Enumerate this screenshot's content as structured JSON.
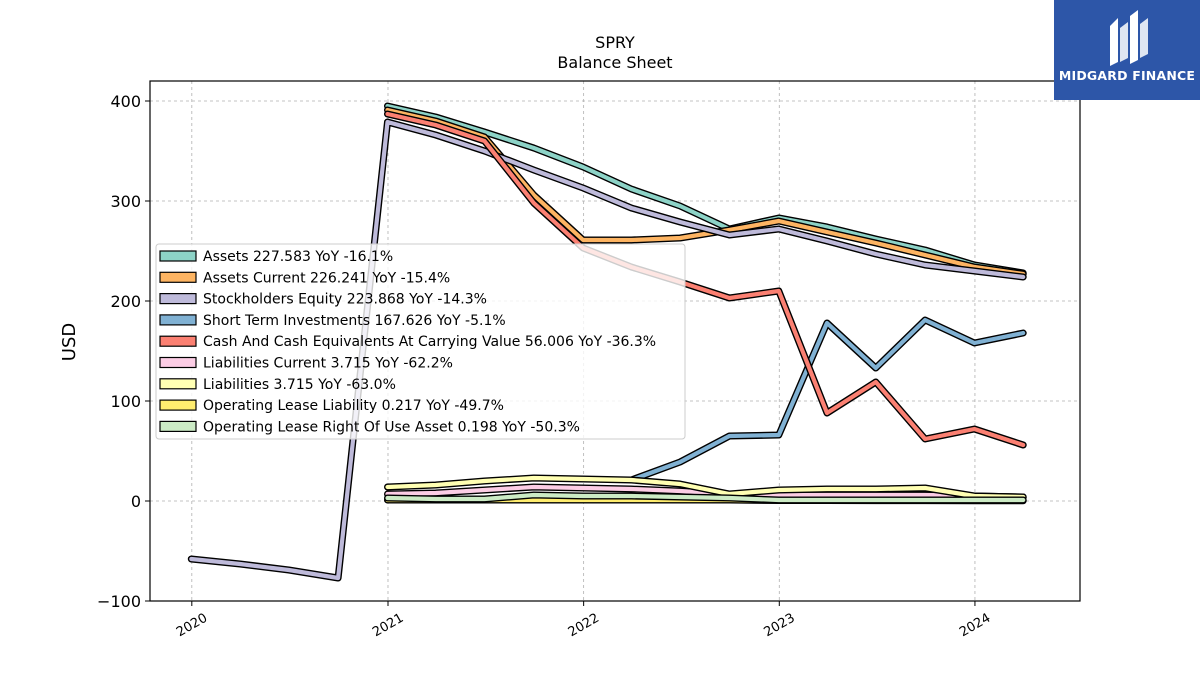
{
  "chart_data": {
    "type": "line",
    "title": "SPRY",
    "subtitle": "Balance  Sheet",
    "ylabel": "USD",
    "xlabel": "",
    "ylim": [
      -100,
      420
    ],
    "yticks": [
      -100,
      0,
      100,
      200,
      300,
      400
    ],
    "ytick_labels": [
      "−100",
      "0",
      "100",
      "200",
      "300",
      "400"
    ],
    "xlim": [
      "2019-10-15",
      "2024-07-15"
    ],
    "xticks": [
      "2020-01-01",
      "2021-01-01",
      "2022-01-01",
      "2023-01-01",
      "2024-01-01"
    ],
    "xtick_labels": [
      "2020",
      "2021",
      "2022",
      "2023",
      "2024"
    ],
    "grid": true,
    "legend_position": "center-left",
    "series": [
      {
        "name": "Assets",
        "legend": "Assets  227.583 YoY -16.1%",
        "color": "#8dd3c7",
        "x": [
          "2020-12-31",
          "2021-03-31",
          "2021-06-30",
          "2021-09-30",
          "2021-12-31",
          "2022-03-31",
          "2022-06-30",
          "2022-09-30",
          "2022-12-31",
          "2023-03-31",
          "2023-06-30",
          "2023-09-30",
          "2023-12-31",
          "2024-03-31"
        ],
        "y": [
          395,
          384,
          369,
          353,
          334,
          312,
          295,
          272,
          283,
          274,
          262,
          251,
          236,
          228
        ]
      },
      {
        "name": "Assets Current",
        "legend": "Assets Current  226.241 YoY -15.4%",
        "color": "#fdb462",
        "x": [
          "2020-12-31",
          "2021-03-31",
          "2021-06-30",
          "2021-09-30",
          "2021-12-31",
          "2022-03-31",
          "2022-06-30",
          "2022-09-30",
          "2022-12-31",
          "2023-03-31",
          "2023-06-30",
          "2023-09-30",
          "2023-12-31",
          "2024-03-31"
        ],
        "y": [
          391,
          380,
          364,
          306,
          261,
          261,
          263,
          271,
          280,
          269,
          258,
          246,
          234,
          227
        ]
      },
      {
        "name": "Stockholders Equity",
        "legend": "Stockholders Equity  223.868 YoY -14.3%",
        "color": "#bebada",
        "x": [
          "2019-12-31",
          "2020-03-31",
          "2020-06-30",
          "2020-09-30",
          "2020-12-31",
          "2021-03-31",
          "2021-06-30",
          "2021-09-30",
          "2021-12-31",
          "2022-03-31",
          "2022-06-30",
          "2022-09-30",
          "2022-12-31",
          "2023-03-31",
          "2023-06-30",
          "2023-09-30",
          "2023-12-31",
          "2024-03-31"
        ],
        "y": [
          -58,
          -63,
          -69,
          -77,
          379,
          366,
          350,
          331,
          313,
          293,
          279,
          266,
          272,
          260,
          247,
          236,
          230,
          224
        ]
      },
      {
        "name": "Short Term Investments",
        "legend": "Short Term Investments  167.626 YoY -5.1%",
        "color": "#80b1d3",
        "x": [
          "2022-03-31",
          "2022-06-30",
          "2022-09-30",
          "2022-12-31",
          "2023-03-31",
          "2023-06-30",
          "2023-09-30",
          "2023-12-31",
          "2024-03-31"
        ],
        "y": [
          21,
          39,
          65,
          66,
          178,
          133,
          181,
          158,
          168
        ]
      },
      {
        "name": "Cash And Cash Equivalents At Carrying Value",
        "legend": "Cash And Cash Equivalents At Carrying Value  56.006 YoY -36.3%",
        "color": "#fb8072",
        "x": [
          "2020-12-31",
          "2021-03-31",
          "2021-06-30",
          "2021-09-30",
          "2021-12-31",
          "2022-03-31",
          "2022-06-30",
          "2022-09-30",
          "2022-12-31",
          "2023-03-31",
          "2023-06-30",
          "2023-09-30",
          "2023-12-31",
          "2024-03-31"
        ],
        "y": [
          387,
          376,
          360,
          298,
          253,
          234,
          219,
          203,
          210,
          88,
          119,
          62,
          72,
          56
        ]
      },
      {
        "name": "Liabilities Current",
        "legend": "Liabilities Current  3.715 YoY -62.2%",
        "color": "#fccde5",
        "x": [
          "2020-12-31",
          "2021-03-31",
          "2021-06-30",
          "2021-09-30",
          "2021-12-31",
          "2022-03-31",
          "2022-06-30",
          "2022-09-30",
          "2022-12-31",
          "2023-03-31",
          "2023-06-30",
          "2023-09-30",
          "2023-12-31",
          "2024-03-31"
        ],
        "y": [
          7,
          8,
          11,
          14,
          13,
          12,
          10,
          7,
          6,
          6,
          6,
          6,
          5,
          4
        ]
      },
      {
        "name": "Liabilities",
        "legend": "Liabilities  3.715 YoY -63.0%",
        "color": "#ffffb3",
        "x": [
          "2020-12-31",
          "2021-03-31",
          "2021-06-30",
          "2021-09-30",
          "2021-12-31",
          "2022-03-31",
          "2022-06-30",
          "2022-09-30",
          "2022-12-31",
          "2023-03-31",
          "2023-06-30",
          "2023-09-30",
          "2023-12-31",
          "2024-03-31"
        ],
        "y": [
          14,
          16,
          20,
          23,
          22,
          21,
          17,
          7,
          11,
          12,
          12,
          13,
          5,
          4
        ]
      },
      {
        "name": "Operating Lease Liability",
        "legend": "Operating Lease Liability  0.217 YoY -49.7%",
        "color": "#ffed6f",
        "x": [
          "2020-12-31",
          "2021-03-31",
          "2021-06-30",
          "2021-09-30",
          "2021-12-31",
          "2022-03-31",
          "2022-06-30",
          "2022-09-30",
          "2022-12-31",
          "2023-03-31",
          "2023-06-30",
          "2023-09-30",
          "2023-12-31",
          "2024-03-31"
        ],
        "y": [
          1,
          1,
          1,
          1,
          1,
          1,
          1,
          1,
          0.5,
          0.5,
          0.4,
          0.4,
          0.3,
          0.2
        ]
      },
      {
        "name": "Operating Lease Right Of Use Asset",
        "legend": "Operating Lease Right Of Use Asset  0.198 YoY -50.3%",
        "color": "#ccebc5",
        "x": [
          "2020-12-31",
          "2021-03-31",
          "2021-06-30",
          "2021-09-30",
          "2021-12-31",
          "2022-03-31",
          "2022-06-30",
          "2022-09-30",
          "2022-12-31",
          "2023-03-31",
          "2023-06-30",
          "2023-09-30",
          "2023-12-31",
          "2024-03-31"
        ],
        "y": [
          3,
          2,
          2,
          6,
          5,
          5,
          4,
          3,
          1,
          1,
          1,
          1,
          1,
          1
        ]
      }
    ]
  },
  "logo": {
    "brand": "MIDGARD FINANCE",
    "color": "#2d56a8"
  }
}
